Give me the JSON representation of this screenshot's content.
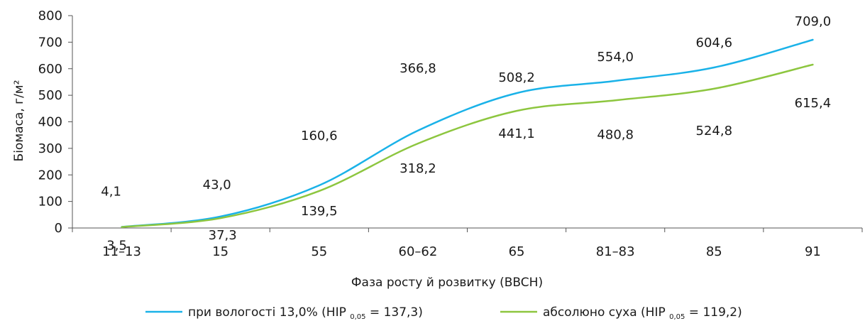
{
  "chart_data": {
    "type": "line",
    "title": "",
    "xlabel": "Фаза росту й розвитку (BBCH)",
    "ylabel": "Біомаса, г/м²",
    "categories": [
      "11–13",
      "15",
      "55",
      "60–62",
      "65",
      "81–83",
      "85",
      "91"
    ],
    "ylim": [
      0,
      800
    ],
    "yticks": [
      0,
      100,
      200,
      300,
      400,
      500,
      600,
      700,
      800
    ],
    "grid": false,
    "legend_position": "bottom",
    "series": [
      {
        "name": "при вологості 13,0% (НІР 0,05 = 137,3)",
        "legend_main": "при вологості 13,0% (НІР",
        "legend_sub": "0,05",
        "legend_tail": "= 137,3)",
        "color": "#1ab2e8",
        "values": [
          4.1,
          43.0,
          160.6,
          366.8,
          508.2,
          554.0,
          604.6,
          709.0
        ],
        "labels": [
          "4,1",
          "43,0",
          "160,6",
          "366,8",
          "508,2",
          "554,0",
          "604,6",
          "709,0"
        ]
      },
      {
        "name": "абсолюно суха (НІР 0,05 = 119,2)",
        "legend_main": "абсолюно суха (НІР",
        "legend_sub": "0,05",
        "legend_tail": "= 119,2)",
        "color": "#8dc63f",
        "values": [
          3.5,
          37.3,
          139.5,
          318.2,
          441.1,
          480.8,
          524.8,
          615.4
        ],
        "labels": [
          "3,5",
          "37,3",
          "139,5",
          "318,2",
          "441,1",
          "480,8",
          "524,8",
          "615,4"
        ]
      }
    ]
  }
}
